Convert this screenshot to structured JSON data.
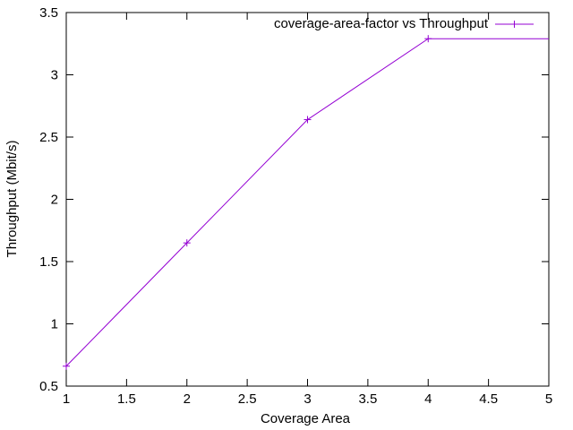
{
  "chart_data": {
    "type": "line",
    "title": "",
    "xlabel": "Coverage Area",
    "ylabel": "Throughput (Mbit/s)",
    "xlim": [
      1,
      5
    ],
    "ylim": [
      0.5,
      3.5
    ],
    "x_ticks": [
      "1",
      "1.5",
      "2",
      "2.5",
      "3",
      "3.5",
      "4",
      "4.5",
      "5"
    ],
    "y_ticks": [
      "0.5",
      "1",
      "1.5",
      "2",
      "2.5",
      "3",
      "3.5"
    ],
    "grid": false,
    "legend_position": "top-right",
    "series": [
      {
        "name": "coverage-area-factor vs Throughput",
        "color": "#9400d3",
        "marker": "plus",
        "x": [
          1,
          2,
          3,
          4,
          5
        ],
        "y": [
          0.66,
          1.65,
          2.64,
          3.29,
          3.29
        ]
      }
    ]
  }
}
